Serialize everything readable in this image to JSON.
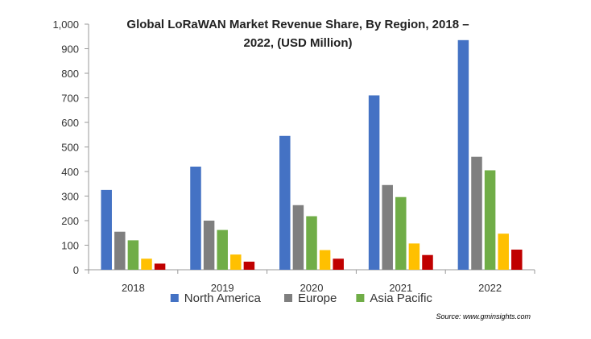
{
  "chart_data": {
    "type": "bar",
    "title_lines": [
      "Global LoRaWAN Market Revenue Share, By Region, 2018 –",
      "2022, (USD Million)"
    ],
    "xlabel": "",
    "ylabel": "",
    "categories": [
      "2018",
      "2019",
      "2020",
      "2021",
      "2022"
    ],
    "ylim": [
      0,
      1000
    ],
    "yticks": [
      "0",
      "100",
      "200",
      "300",
      "400",
      "500",
      "600",
      "700",
      "800",
      "900",
      "1,000"
    ],
    "grid": false,
    "legend_position": "bottom",
    "legend_entries": [
      "North America",
      "Europe",
      "Asia Pacific"
    ],
    "series": [
      {
        "name": "North America",
        "color": "#4472C4",
        "values": [
          325,
          420,
          545,
          710,
          935
        ]
      },
      {
        "name": "Europe",
        "color": "#7F7F7F",
        "values": [
          155,
          200,
          263,
          345,
          460
        ]
      },
      {
        "name": "Asia Pacific",
        "color": "#70AD47",
        "values": [
          120,
          162,
          218,
          296,
          405
        ]
      },
      {
        "color": "#FFC000",
        "values": [
          45,
          62,
          80,
          107,
          147
        ]
      },
      {
        "color": "#C00000",
        "values": [
          25,
          33,
          45,
          60,
          82
        ]
      }
    ],
    "source": "Source: www.gminsights.com"
  }
}
